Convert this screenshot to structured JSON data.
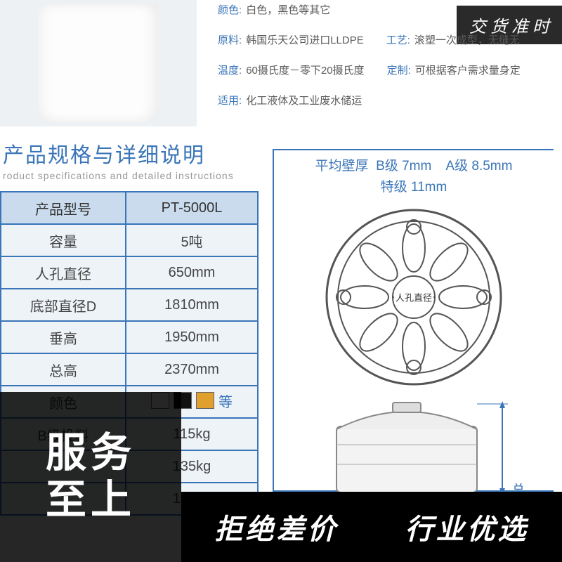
{
  "badge_top": "交货准时",
  "attrs": {
    "row1": [
      {
        "label": "颜色",
        "value": "白色，黑色等其它"
      }
    ],
    "row2": [
      {
        "label": "原料",
        "value": "韩国乐天公司进口LLDPE"
      },
      {
        "label": "工艺",
        "value": "滚塑一次成型，无缝无"
      }
    ],
    "row3": [
      {
        "label": "温度",
        "value": "60摄氏度－零下20摄氏度"
      },
      {
        "label": "定制",
        "value": "可根据客户需求量身定"
      }
    ],
    "row4": [
      {
        "label": "适用",
        "value": "化工液体及工业废水储运"
      }
    ]
  },
  "section_title": {
    "cn": "产品规格与详细说明",
    "en": "roduct specifications and detailed instructions"
  },
  "spec_table": {
    "rows": [
      {
        "label": "产品型号",
        "value": "PT-5000L"
      },
      {
        "label": "容量",
        "value": "5吨"
      },
      {
        "label": "人孔直径",
        "value": "650mm"
      },
      {
        "label": "底部直径D",
        "value": "1810mm"
      },
      {
        "label": "垂高",
        "value": "1950mm"
      },
      {
        "label": "总高",
        "value": "2370mm"
      },
      {
        "label": "颜色",
        "value": "__COLORS__"
      },
      {
        "label": "B级投料",
        "value": "115kg"
      },
      {
        "label": "",
        "value": "135kg"
      },
      {
        "label": "",
        "value": "180kg"
      }
    ],
    "color_swatches": [
      "#ffffff",
      "#111111",
      "#e0a030"
    ],
    "color_suffix": "等"
  },
  "wall_thickness": {
    "line1_label": "平均壁厚",
    "grade_b": "B级",
    "grade_b_val": "7mm",
    "grade_a": "A级",
    "grade_a_val": "8.5mm",
    "grade_s": "特级",
    "grade_s_val": "11mm"
  },
  "diagram": {
    "renkong_label": "人孔直径",
    "side_dim_label": "总"
  },
  "overlay": {
    "left_line1": "服务",
    "left_line2": "至上",
    "right1": "拒绝差价",
    "right2": "行业优选"
  },
  "colors": {
    "brand_blue": "#3a75b8",
    "table_header_bg": "#c9dbed",
    "table_cell_bg": "#eef3f8",
    "overlay_bg": "#000000"
  }
}
